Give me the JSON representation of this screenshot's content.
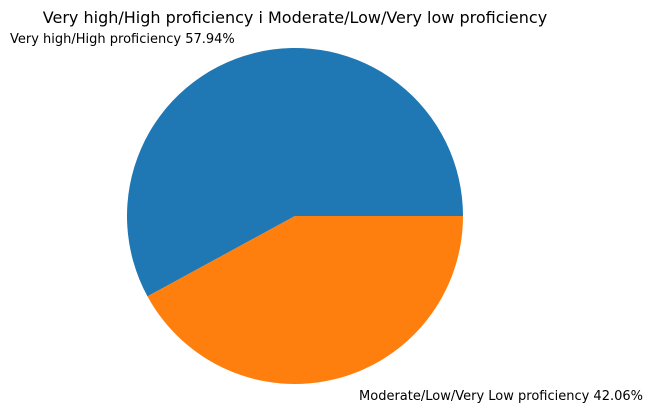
{
  "chart_data": {
    "type": "pie",
    "title": "Very high/High proficiency i Moderate/Low/Very low proficiency",
    "slices": [
      {
        "label": "Very high/High proficiency",
        "value": 57.94,
        "display": "Very high/High proficiency 57.94%",
        "color": "#1f77b4"
      },
      {
        "label": "Moderate/Low/Very Low proficiency",
        "value": 42.06,
        "display": "Moderate/Low/Very Low proficiency 42.06%",
        "color": "#ff7f0e"
      }
    ],
    "start_angle_deg": 0,
    "direction": "counterclockwise",
    "legend": "none"
  }
}
